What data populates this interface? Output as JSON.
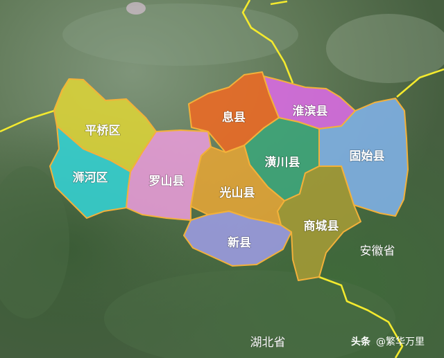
{
  "counties": [
    {
      "id": "pingqiao",
      "name": "平桥区",
      "color": "#d9d23a"
    },
    {
      "id": "shihe",
      "name": "浉河区",
      "color": "#35cfcf"
    },
    {
      "id": "luoshan",
      "name": "罗山县",
      "color": "#e59bd6"
    },
    {
      "id": "xixian",
      "name": "息县",
      "color": "#ea6a26"
    },
    {
      "id": "huaibin",
      "name": "淮滨县",
      "color": "#d76be0"
    },
    {
      "id": "huangchuan",
      "name": "潢川县",
      "color": "#3ea57a"
    },
    {
      "id": "gushi",
      "name": "固始县",
      "color": "#7fb0e4"
    },
    {
      "id": "guangshan",
      "name": "光山县",
      "color": "#e2a437"
    },
    {
      "id": "xinxian",
      "name": "新县",
      "color": "#9b9be0"
    },
    {
      "id": "shangcheng",
      "name": "商城县",
      "color": "#a39a36"
    }
  ],
  "provinces": {
    "anhui": "安徽省",
    "hubei": "湖北省"
  },
  "watermark": {
    "source": "头条",
    "author": "@繁华万里"
  },
  "colors": {
    "province_border": "#f4ea2e",
    "county_border": "#f3b13a"
  }
}
